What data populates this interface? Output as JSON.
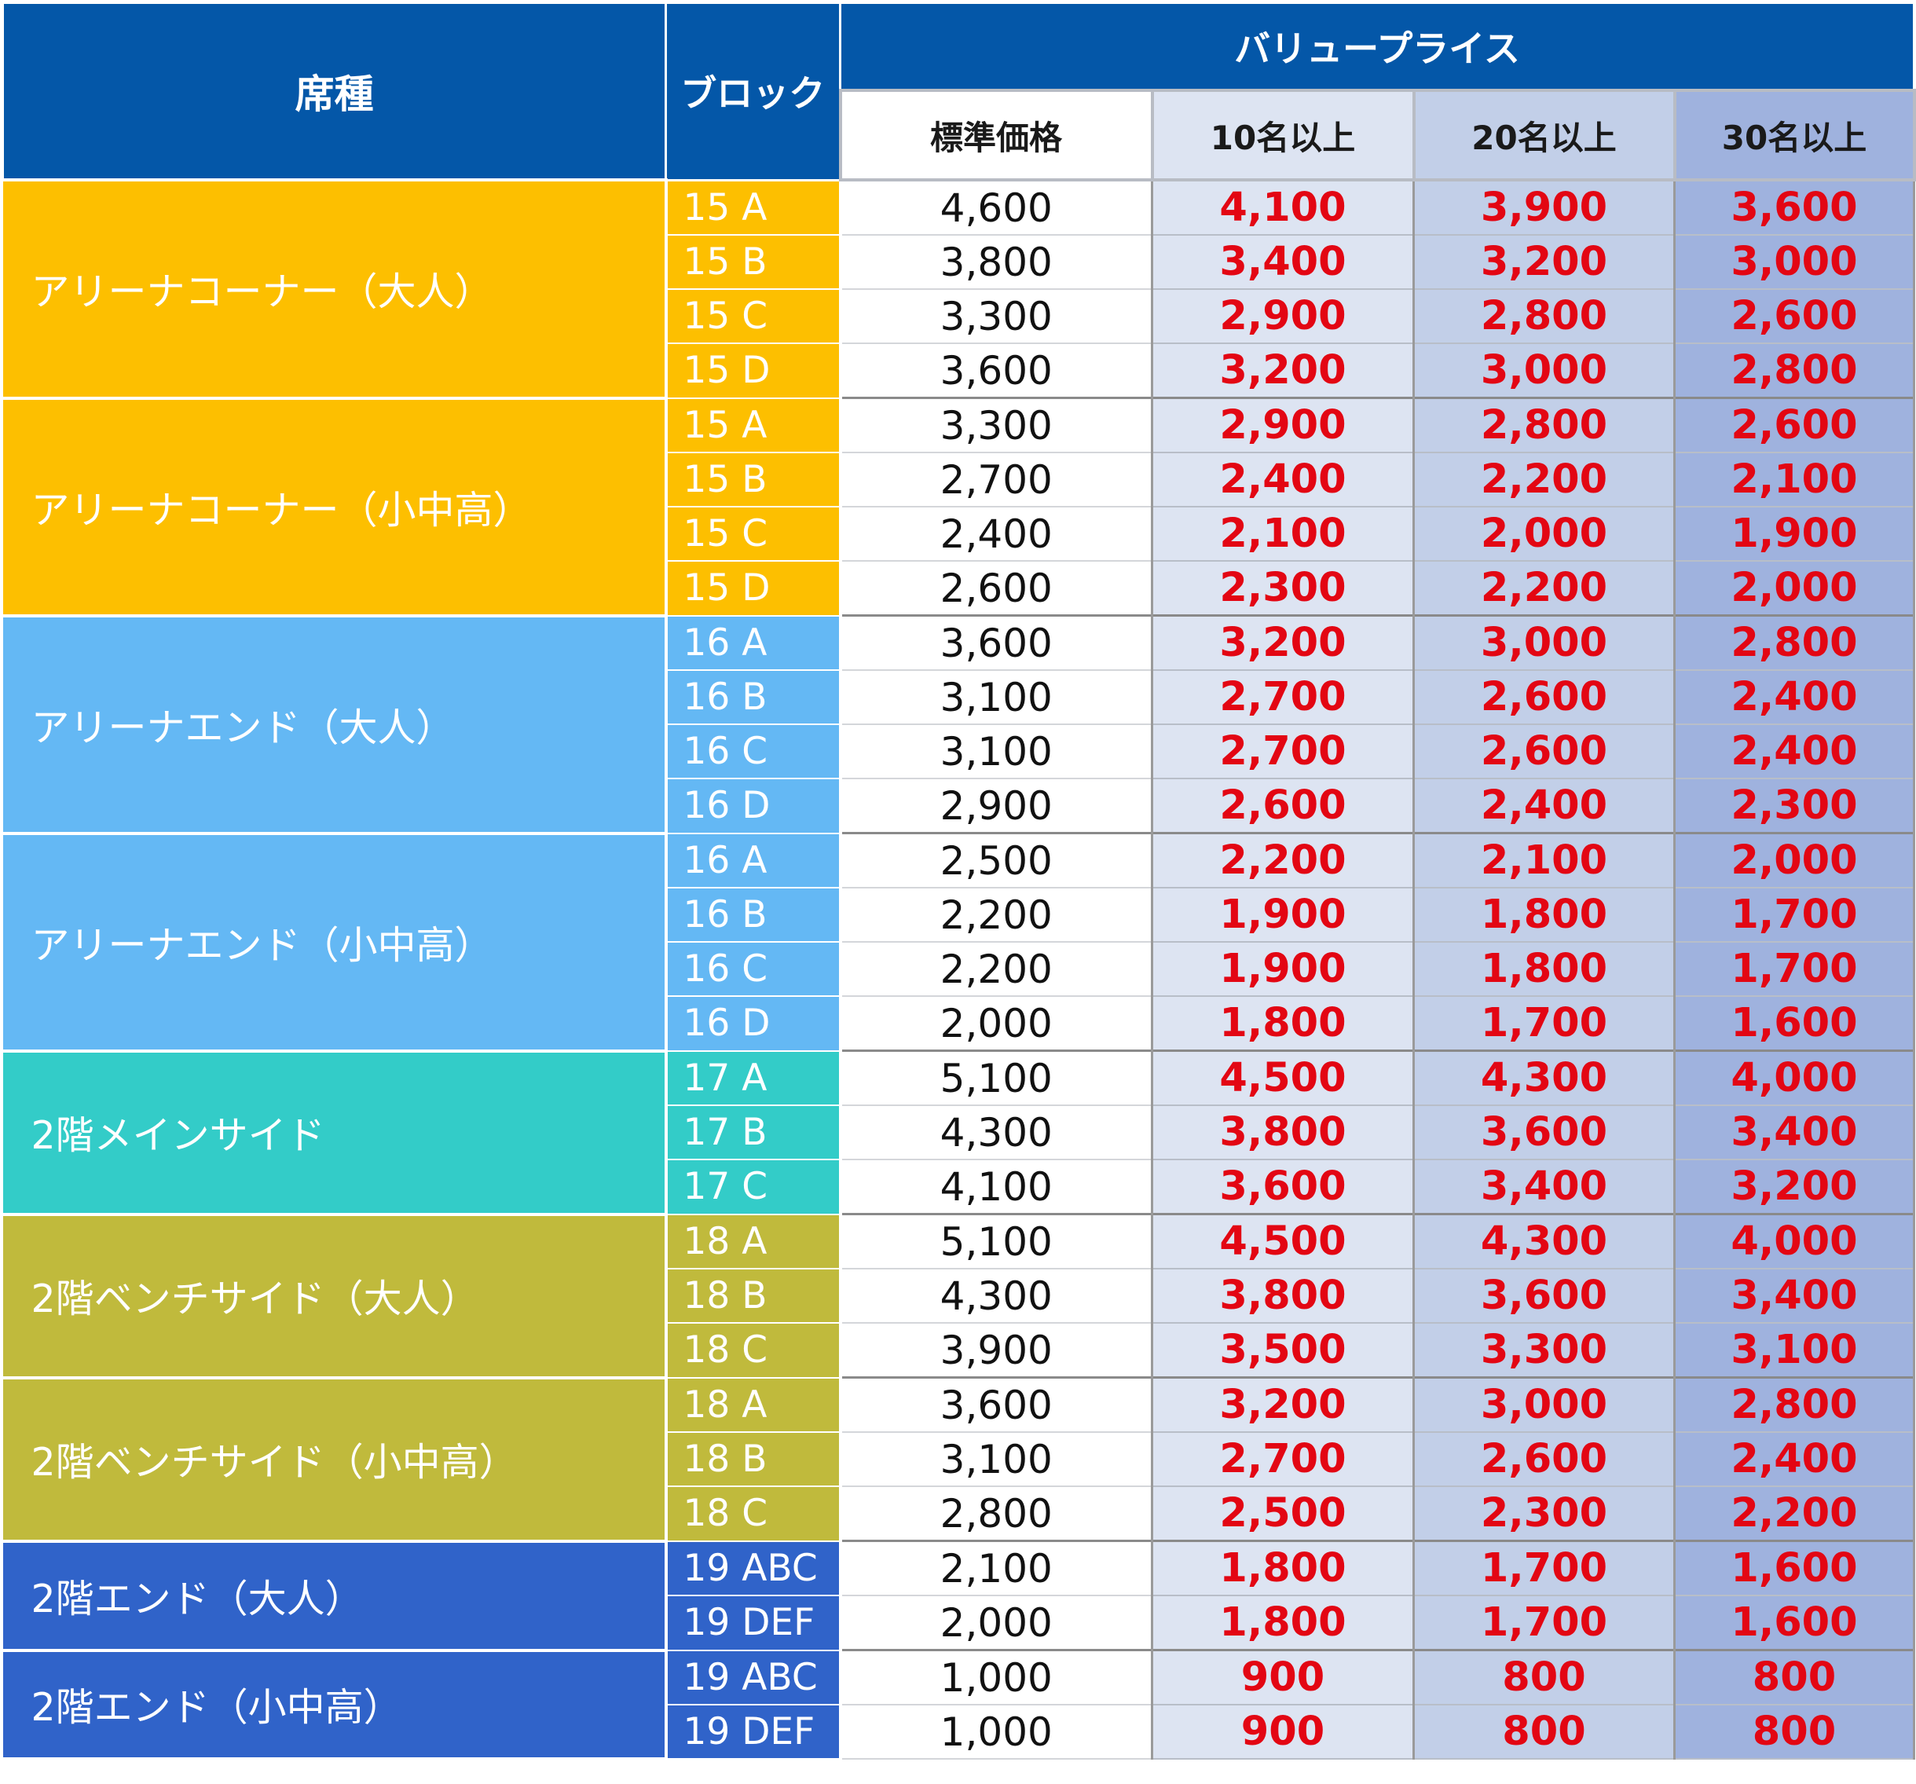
{
  "header": {
    "seat_type": "席種",
    "block": "ブロック",
    "value_price": "バリュープライス",
    "standard_price": "標準価格",
    "tier_10": "10名以上",
    "tier_20": "20名以上",
    "tier_30": "30名以上"
  },
  "colors": {
    "header_bg": "#0457a8",
    "price_red": "#e30613",
    "orange": "#fdbf00",
    "light_blue": "#64b8f4",
    "teal": "#33ccc8",
    "olive": "#c0ba3c",
    "blue": "#3063c9"
  },
  "groups": [
    {
      "seat": "アリーナコーナー（大人）",
      "color": "orange",
      "rows": [
        {
          "block": "15 A",
          "std": "4,600",
          "p10": "4,100",
          "p20": "3,900",
          "p30": "3,600"
        },
        {
          "block": "15 B",
          "std": "3,800",
          "p10": "3,400",
          "p20": "3,200",
          "p30": "3,000"
        },
        {
          "block": "15 C",
          "std": "3,300",
          "p10": "2,900",
          "p20": "2,800",
          "p30": "2,600"
        },
        {
          "block": "15 D",
          "std": "3,600",
          "p10": "3,200",
          "p20": "3,000",
          "p30": "2,800"
        }
      ]
    },
    {
      "seat": "アリーナコーナー（小中高）",
      "color": "orange",
      "rows": [
        {
          "block": "15 A",
          "std": "3,300",
          "p10": "2,900",
          "p20": "2,800",
          "p30": "2,600"
        },
        {
          "block": "15 B",
          "std": "2,700",
          "p10": "2,400",
          "p20": "2,200",
          "p30": "2,100"
        },
        {
          "block": "15 C",
          "std": "2,400",
          "p10": "2,100",
          "p20": "2,000",
          "p30": "1,900"
        },
        {
          "block": "15 D",
          "std": "2,600",
          "p10": "2,300",
          "p20": "2,200",
          "p30": "2,000"
        }
      ]
    },
    {
      "seat": "アリーナエンド（大人）",
      "color": "lightblue",
      "rows": [
        {
          "block": "16 A",
          "std": "3,600",
          "p10": "3,200",
          "p20": "3,000",
          "p30": "2,800"
        },
        {
          "block": "16 B",
          "std": "3,100",
          "p10": "2,700",
          "p20": "2,600",
          "p30": "2,400"
        },
        {
          "block": "16 C",
          "std": "3,100",
          "p10": "2,700",
          "p20": "2,600",
          "p30": "2,400"
        },
        {
          "block": "16 D",
          "std": "2,900",
          "p10": "2,600",
          "p20": "2,400",
          "p30": "2,300"
        }
      ]
    },
    {
      "seat": "アリーナエンド（小中高）",
      "color": "lightblue",
      "rows": [
        {
          "block": "16 A",
          "std": "2,500",
          "p10": "2,200",
          "p20": "2,100",
          "p30": "2,000"
        },
        {
          "block": "16 B",
          "std": "2,200",
          "p10": "1,900",
          "p20": "1,800",
          "p30": "1,700"
        },
        {
          "block": "16 C",
          "std": "2,200",
          "p10": "1,900",
          "p20": "1,800",
          "p30": "1,700"
        },
        {
          "block": "16 D",
          "std": "2,000",
          "p10": "1,800",
          "p20": "1,700",
          "p30": "1,600"
        }
      ]
    },
    {
      "seat": "2階メインサイド",
      "color": "teal",
      "rows": [
        {
          "block": "17 A",
          "std": "5,100",
          "p10": "4,500",
          "p20": "4,300",
          "p30": "4,000"
        },
        {
          "block": "17 B",
          "std": "4,300",
          "p10": "3,800",
          "p20": "3,600",
          "p30": "3,400"
        },
        {
          "block": "17 C",
          "std": "4,100",
          "p10": "3,600",
          "p20": "3,400",
          "p30": "3,200"
        }
      ]
    },
    {
      "seat": "2階ベンチサイド（大人）",
      "color": "olive",
      "rows": [
        {
          "block": "18 A",
          "std": "5,100",
          "p10": "4,500",
          "p20": "4,300",
          "p30": "4,000"
        },
        {
          "block": "18 B",
          "std": "4,300",
          "p10": "3,800",
          "p20": "3,600",
          "p30": "3,400"
        },
        {
          "block": "18 C",
          "std": "3,900",
          "p10": "3,500",
          "p20": "3,300",
          "p30": "3,100"
        }
      ]
    },
    {
      "seat": "2階ベンチサイド（小中高）",
      "color": "olive",
      "rows": [
        {
          "block": "18 A",
          "std": "3,600",
          "p10": "3,200",
          "p20": "3,000",
          "p30": "2,800"
        },
        {
          "block": "18 B",
          "std": "3,100",
          "p10": "2,700",
          "p20": "2,600",
          "p30": "2,400"
        },
        {
          "block": "18 C",
          "std": "2,800",
          "p10": "2,500",
          "p20": "2,300",
          "p30": "2,200"
        }
      ]
    },
    {
      "seat": "2階エンド（大人）",
      "color": "blue",
      "rows": [
        {
          "block": "19 ABC",
          "std": "2,100",
          "p10": "1,800",
          "p20": "1,700",
          "p30": "1,600"
        },
        {
          "block": "19 DEF",
          "std": "2,000",
          "p10": "1,800",
          "p20": "1,700",
          "p30": "1,600"
        }
      ]
    },
    {
      "seat": "2階エンド（小中高）",
      "color": "blue",
      "rows": [
        {
          "block": "19 ABC",
          "std": "1,000",
          "p10": "900",
          "p20": "800",
          "p30": "800"
        },
        {
          "block": "19 DEF",
          "std": "1,000",
          "p10": "900",
          "p20": "800",
          "p30": "800"
        }
      ]
    }
  ]
}
